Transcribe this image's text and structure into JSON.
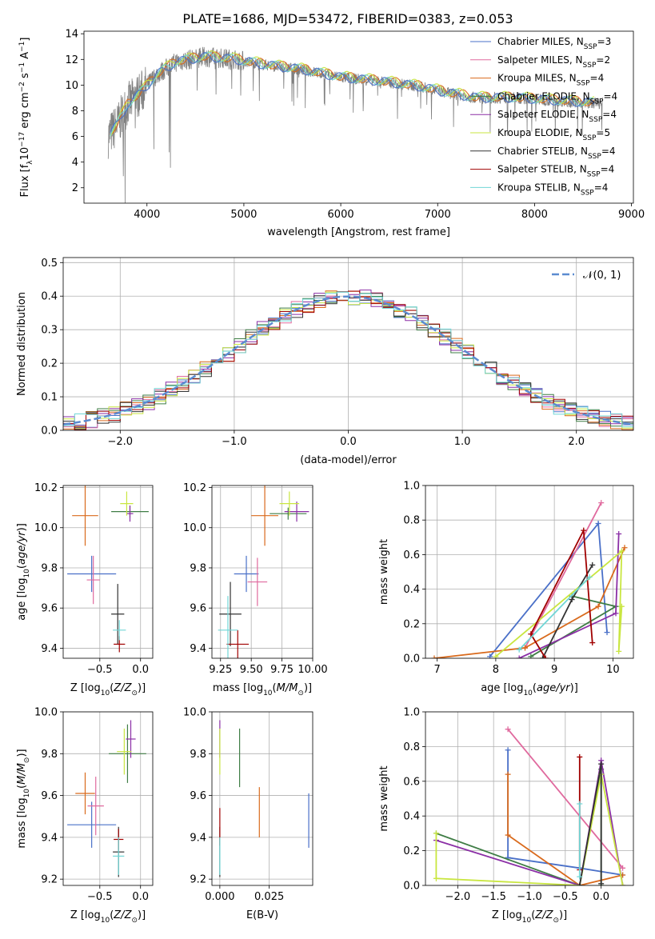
{
  "figure": {
    "title": "PLATE=1686, MJD=53472, FIBERID=0383, z=0.053"
  },
  "colors": [
    "#4a70c8",
    "#e06a9e",
    "#d96a1c",
    "#3f7d45",
    "#8b2fa6",
    "#c9e640",
    "#333333",
    "#a00000",
    "#70d6d6"
  ],
  "legend": {
    "entries": [
      {
        "pre": "Chabrier MILES, N",
        "sub": "SSP",
        "post": "=3"
      },
      {
        "pre": "Salpeter MILES, N",
        "sub": "SSP",
        "post": "=2"
      },
      {
        "pre": "Kroupa MILES, N",
        "sub": "SSP",
        "post": "=4"
      },
      {
        "pre": "Chabrier ELODIE, N",
        "sub": "SSP",
        "post": "=4"
      },
      {
        "pre": "Salpeter ELODIE, N",
        "sub": "SSP",
        "post": "=4"
      },
      {
        "pre": "Kroupa ELODIE, N",
        "sub": "SSP",
        "post": "=5"
      },
      {
        "pre": "Chabrier STELIB, N",
        "sub": "SSP",
        "post": "=4"
      },
      {
        "pre": "Salpeter STELIB, N",
        "sub": "SSP",
        "post": "=4"
      },
      {
        "pre": "Kroupa STELIB, N",
        "sub": "SSP",
        "post": "=4"
      }
    ],
    "normal_label": "𝒩(0, 1)"
  },
  "chart_data": [
    {
      "id": "spectrum",
      "type": "line",
      "xlabel": "wavelength [Angstrom, rest frame]",
      "ylabel": "Flux [f λ 10^-17 erg cm^-2 s^-1 A^-1]",
      "xlim": [
        3350,
        9020
      ],
      "ylim": [
        0.8,
        14.2
      ],
      "xticks": [
        4000,
        5000,
        6000,
        7000,
        8000,
        9000
      ],
      "yticks": [
        2,
        4,
        6,
        8,
        10,
        12,
        14
      ],
      "data_range": [
        3600,
        8700
      ],
      "continuum": [
        [
          3600,
          6.0
        ],
        [
          3700,
          7.0
        ],
        [
          3800,
          8.5
        ],
        [
          3950,
          9.5
        ],
        [
          4100,
          10.8
        ],
        [
          4300,
          11.8
        ],
        [
          4600,
          12.2
        ],
        [
          4900,
          12.0
        ],
        [
          5200,
          11.6
        ],
        [
          5600,
          11.2
        ],
        [
          6000,
          10.6
        ],
        [
          6400,
          10.3
        ],
        [
          6800,
          9.9
        ],
        [
          7100,
          9.4
        ],
        [
          7400,
          9.0
        ],
        [
          7800,
          9.0
        ],
        [
          8200,
          8.8
        ],
        [
          8600,
          8.6
        ]
      ]
    },
    {
      "id": "residuals",
      "type": "step",
      "xlabel": "(data-model)/error",
      "ylabel": "Normed distribution",
      "xlim": [
        -2.5,
        2.5
      ],
      "ylim": [
        0,
        0.515
      ],
      "xticks": [
        -2,
        -1,
        0,
        1,
        2
      ],
      "yticks": [
        0,
        0.1,
        0.2,
        0.3,
        0.4,
        0.5
      ],
      "normal": {
        "mean": 0,
        "sigma": 1
      }
    },
    {
      "id": "age-vs-z",
      "type": "errorbar",
      "xlabel": "Z [log10(Z/Z⊙)]",
      "ylabel": "age [log10(age/yr)]",
      "xlim": [
        -0.95,
        0.15
      ],
      "ylim": [
        9.35,
        10.21
      ],
      "xticks": [
        -0.5,
        0.0
      ],
      "yticks": [
        9.4,
        9.6,
        9.8,
        10.0,
        10.2
      ],
      "points": [
        {
          "x": -0.6,
          "y": 9.77,
          "xerr": 0.3,
          "yerr": 0.09,
          "c": 0
        },
        {
          "x": -0.58,
          "y": 9.74,
          "xerr": 0.08,
          "yerr": 0.12,
          "c": 1
        },
        {
          "x": -0.68,
          "y": 10.06,
          "xerr": 0.16,
          "yerr": 0.15,
          "c": 2
        },
        {
          "x": -0.13,
          "y": 10.08,
          "xerr": 0.23,
          "yerr": 0.03,
          "c": 3
        },
        {
          "x": -0.13,
          "y": 10.07,
          "xerr": 0.04,
          "yerr": 0.04,
          "c": 4
        },
        {
          "x": -0.17,
          "y": 10.12,
          "xerr": 0.08,
          "yerr": 0.06,
          "c": 5
        },
        {
          "x": -0.28,
          "y": 9.57,
          "xerr": 0.08,
          "yerr": 0.15,
          "c": 6
        },
        {
          "x": -0.26,
          "y": 9.42,
          "xerr": 0.07,
          "yerr": 0.04,
          "c": 7
        },
        {
          "x": -0.26,
          "y": 9.49,
          "xerr": 0.08,
          "yerr": 0.05,
          "c": 8
        }
      ]
    },
    {
      "id": "age-vs-mass",
      "type": "errorbar",
      "xlabel": "mass [log10(M/M⊙)]",
      "ylabel": "",
      "xlim": [
        9.18,
        10.0
      ],
      "ylim": [
        9.35,
        10.21
      ],
      "xticks": [
        9.25,
        9.5,
        9.75,
        10.0
      ],
      "yticks": [
        9.4,
        9.6,
        9.8,
        10.0,
        10.2
      ],
      "points": [
        {
          "x": 9.46,
          "y": 9.77,
          "xerr": 0.1,
          "yerr": 0.09,
          "c": 0
        },
        {
          "x": 9.55,
          "y": 9.73,
          "xerr": 0.08,
          "yerr": 0.12,
          "c": 1
        },
        {
          "x": 9.61,
          "y": 10.06,
          "xerr": 0.11,
          "yerr": 0.15,
          "c": 2
        },
        {
          "x": 9.8,
          "y": 10.07,
          "xerr": 0.15,
          "yerr": 0.03,
          "c": 3
        },
        {
          "x": 9.87,
          "y": 10.08,
          "xerr": 0.1,
          "yerr": 0.05,
          "c": 4
        },
        {
          "x": 9.81,
          "y": 10.12,
          "xerr": 0.08,
          "yerr": 0.06,
          "c": 5
        },
        {
          "x": 9.33,
          "y": 9.57,
          "xerr": 0.09,
          "yerr": 0.16,
          "c": 6
        },
        {
          "x": 9.39,
          "y": 9.42,
          "xerr": 0.09,
          "yerr": 0.07,
          "c": 7
        },
        {
          "x": 9.31,
          "y": 9.49,
          "xerr": 0.08,
          "yerr": 0.17,
          "c": 8
        }
      ]
    },
    {
      "id": "weight-vs-age",
      "type": "line",
      "xlabel": "age [log10(age/yr)]",
      "ylabel": "mass weight",
      "xlim": [
        6.8,
        10.35
      ],
      "ylim": [
        0,
        1.0
      ],
      "xticks": [
        7,
        8,
        9,
        10
      ],
      "yticks": [
        0.0,
        0.2,
        0.4,
        0.6,
        0.8,
        1.0
      ],
      "series": [
        {
          "c": 0,
          "points": [
            [
              7.9,
              0.01
            ],
            [
              9.75,
              0.78
            ],
            [
              9.9,
              0.15
            ]
          ]
        },
        {
          "c": 1,
          "points": [
            [
              8.5,
              0.06
            ],
            [
              9.8,
              0.9
            ]
          ]
        },
        {
          "c": 2,
          "points": [
            [
              6.95,
              0.0
            ],
            [
              8.5,
              0.06
            ],
            [
              9.75,
              0.3
            ],
            [
              10.2,
              0.64
            ]
          ]
        },
        {
          "c": 3,
          "points": [
            [
              8.6,
              0.01
            ],
            [
              10.05,
              0.3
            ],
            [
              9.3,
              0.36
            ]
          ]
        },
        {
          "c": 4,
          "points": [
            [
              8.4,
              0.0
            ],
            [
              10.05,
              0.26
            ],
            [
              10.1,
              0.72
            ]
          ]
        },
        {
          "c": 5,
          "points": [
            [
              8.0,
              0.01
            ],
            [
              10.15,
              0.62
            ],
            [
              10.1,
              0.04
            ],
            [
              10.15,
              0.3
            ]
          ]
        },
        {
          "c": 6,
          "points": [
            [
              8.8,
              0.0
            ],
            [
              9.3,
              0.34
            ],
            [
              9.65,
              0.54
            ]
          ]
        },
        {
          "c": 7,
          "points": [
            [
              8.85,
              0.0
            ],
            [
              8.6,
              0.14
            ],
            [
              9.5,
              0.74
            ],
            [
              9.65,
              0.09
            ]
          ]
        },
        {
          "c": 8,
          "points": [
            [
              8.4,
              0.05
            ],
            [
              9.6,
              0.47
            ]
          ]
        }
      ]
    },
    {
      "id": "mass-vs-z",
      "type": "errorbar",
      "xlabel": "Z [log10(Z/Z⊙)]",
      "ylabel": "mass [log10(M/M⊙)]",
      "xlim": [
        -0.95,
        0.15
      ],
      "ylim": [
        9.17,
        10.0
      ],
      "xticks": [
        -0.5,
        0.0
      ],
      "yticks": [
        9.2,
        9.4,
        9.6,
        9.8,
        10.0
      ],
      "points": [
        {
          "x": -0.6,
          "y": 9.46,
          "xerr": 0.3,
          "yerr": 0.11,
          "c": 0
        },
        {
          "x": -0.55,
          "y": 9.55,
          "xerr": 0.1,
          "yerr": 0.14,
          "c": 1
        },
        {
          "x": -0.68,
          "y": 9.61,
          "xerr": 0.12,
          "yerr": 0.1,
          "c": 2
        },
        {
          "x": -0.16,
          "y": 9.8,
          "xerr": 0.23,
          "yerr": 0.14,
          "c": 3
        },
        {
          "x": -0.12,
          "y": 9.87,
          "xerr": 0.06,
          "yerr": 0.09,
          "c": 4
        },
        {
          "x": -0.2,
          "y": 9.81,
          "xerr": 0.09,
          "yerr": 0.11,
          "c": 5
        },
        {
          "x": -0.27,
          "y": 9.33,
          "xerr": 0.07,
          "yerr": 0.12,
          "c": 6
        },
        {
          "x": -0.27,
          "y": 9.39,
          "xerr": 0.06,
          "yerr": 0.05,
          "c": 7
        },
        {
          "x": -0.27,
          "y": 9.31,
          "xerr": 0.07,
          "yerr": 0.09,
          "c": 8
        }
      ]
    },
    {
      "id": "mass-vs-ebv",
      "type": "errorbar",
      "xlabel": "E(B-V)",
      "ylabel": "",
      "xlim": [
        -0.004,
        0.047
      ],
      "ylim": [
        9.17,
        10.0
      ],
      "xticks": [
        0.0,
        0.025
      ],
      "xticklabels": [
        "0.000",
        "0.025"
      ],
      "yticks": [
        9.2,
        9.4,
        9.6,
        9.8,
        10.0
      ],
      "points": [
        {
          "x": 0.045,
          "y": 9.48,
          "xerr": 0,
          "yerr": 0.13,
          "c": 0
        },
        {
          "x": 0.02,
          "y": 9.52,
          "xerr": 0,
          "yerr": 0.12,
          "c": 2
        },
        {
          "x": 0.01,
          "y": 9.78,
          "xerr": 0,
          "yerr": 0.14,
          "c": 3
        },
        {
          "x": 0.0,
          "y": 9.87,
          "xerr": 0,
          "yerr": 0.09,
          "c": 4
        },
        {
          "x": 0.0,
          "y": 9.81,
          "xerr": 0,
          "yerr": 0.11,
          "c": 5
        },
        {
          "x": 0.0,
          "y": 9.33,
          "xerr": 0,
          "yerr": 0.12,
          "c": 6
        },
        {
          "x": 0.0,
          "y": 9.45,
          "xerr": 0,
          "yerr": 0.09,
          "c": 7
        },
        {
          "x": 0.0,
          "y": 9.31,
          "xerr": 0,
          "yerr": 0.09,
          "c": 8
        }
      ]
    },
    {
      "id": "weight-vs-z",
      "type": "line",
      "xlabel": "Z [log10(Z/Z⊙)]",
      "ylabel": "mass weight",
      "xlim": [
        -2.45,
        0.45
      ],
      "ylim": [
        0,
        1.0
      ],
      "xticks": [
        -2.0,
        -1.5,
        -1.0,
        -0.5,
        0.0
      ],
      "yticks": [
        0.0,
        0.2,
        0.4,
        0.6,
        0.8,
        1.0
      ],
      "series": [
        {
          "c": 0,
          "points": [
            [
              -1.3,
              0.78
            ],
            [
              -1.3,
              0.16
            ],
            [
              -0.3,
              0.1
            ],
            [
              0.3,
              0.06
            ]
          ]
        },
        {
          "c": 1,
          "points": [
            [
              -1.3,
              0.9
            ],
            [
              0.3,
              0.1
            ]
          ]
        },
        {
          "c": 2,
          "points": [
            [
              -1.3,
              0.64
            ],
            [
              -1.3,
              0.29
            ],
            [
              -0.3,
              0.0
            ],
            [
              0.3,
              0.06
            ]
          ]
        },
        {
          "c": 3,
          "points": [
            [
              -2.3,
              0.3
            ],
            [
              -0.3,
              0.0
            ],
            [
              0.0,
              0.67
            ],
            [
              0.0,
              0.0
            ]
          ]
        },
        {
          "c": 4,
          "points": [
            [
              -2.3,
              0.26
            ],
            [
              -0.3,
              0.0
            ],
            [
              0.0,
              0.72
            ],
            [
              0.3,
              0.0
            ]
          ]
        },
        {
          "c": 5,
          "points": [
            [
              -2.3,
              0.3
            ],
            [
              -2.3,
              0.04
            ],
            [
              -0.3,
              0.0
            ],
            [
              0.0,
              0.64
            ],
            [
              0.3,
              0.0
            ]
          ]
        },
        {
          "c": 6,
          "points": [
            [
              -0.3,
              0.0
            ],
            [
              0.0,
              0.7
            ],
            [
              0.0,
              0.01
            ]
          ]
        },
        {
          "c": 7,
          "points": [
            [
              -0.3,
              0.74
            ],
            [
              -0.3,
              0.09
            ]
          ]
        },
        {
          "c": 8,
          "points": [
            [
              -0.3,
              0.47
            ],
            [
              -0.3,
              0.05
            ]
          ]
        }
      ]
    }
  ]
}
